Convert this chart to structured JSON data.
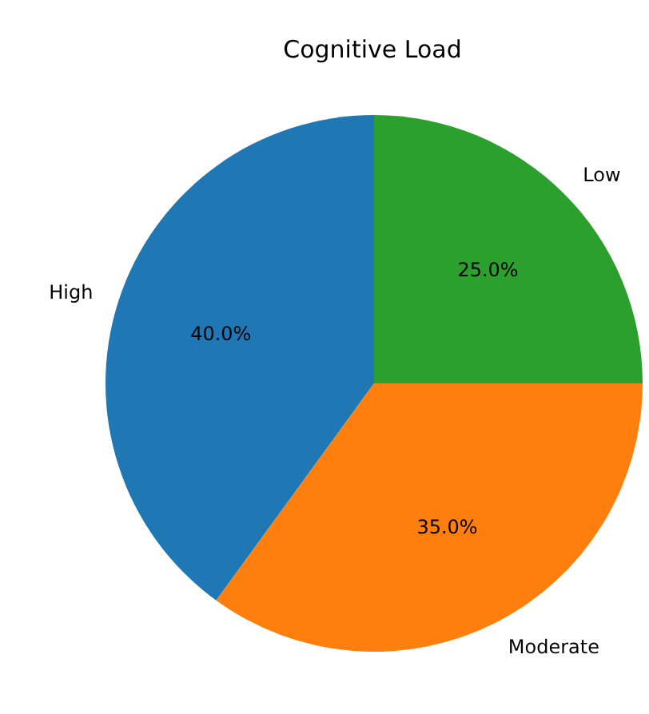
{
  "chart_data": {
    "type": "pie",
    "title": "Cognitive Load",
    "categories": [
      "High",
      "Moderate",
      "Low"
    ],
    "values": [
      40,
      35,
      25
    ],
    "colors": [
      "#1f77b4",
      "#ff7f0e",
      "#2ca02c"
    ],
    "value_labels": [
      "40.0%",
      "35.0%",
      "25.0%"
    ],
    "legend": false
  }
}
